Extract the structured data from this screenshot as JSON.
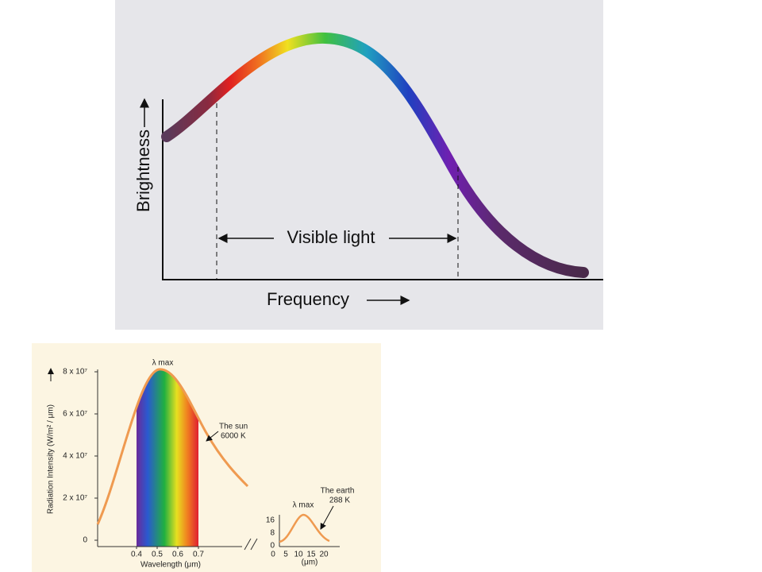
{
  "figure_top": {
    "y_label": "Brightness",
    "x_label": "Frequency",
    "band_label": "Visible light"
  },
  "figure_bottom": {
    "y_label": "Radiation Intensity (W/m² / μm)",
    "x_label": "Wavelength (μm)",
    "y_ticks": [
      "8 x 10⁷",
      "6 x 10⁷",
      "4 x 10⁷",
      "2 x 10⁷",
      "0"
    ],
    "x_ticks": [
      "0.4",
      "0.5",
      "0.6",
      "0.7"
    ],
    "sun_peak": "λ max",
    "sun_label": [
      "The sun",
      "6000 K"
    ],
    "inset": {
      "y_ticks": [
        "16",
        "8",
        "0"
      ],
      "x_ticks": [
        "0",
        "5",
        "10",
        "15",
        "20"
      ],
      "peak": "λ max",
      "label": [
        "The earth",
        "288 K"
      ],
      "x_label": "(μm)"
    }
  }
}
